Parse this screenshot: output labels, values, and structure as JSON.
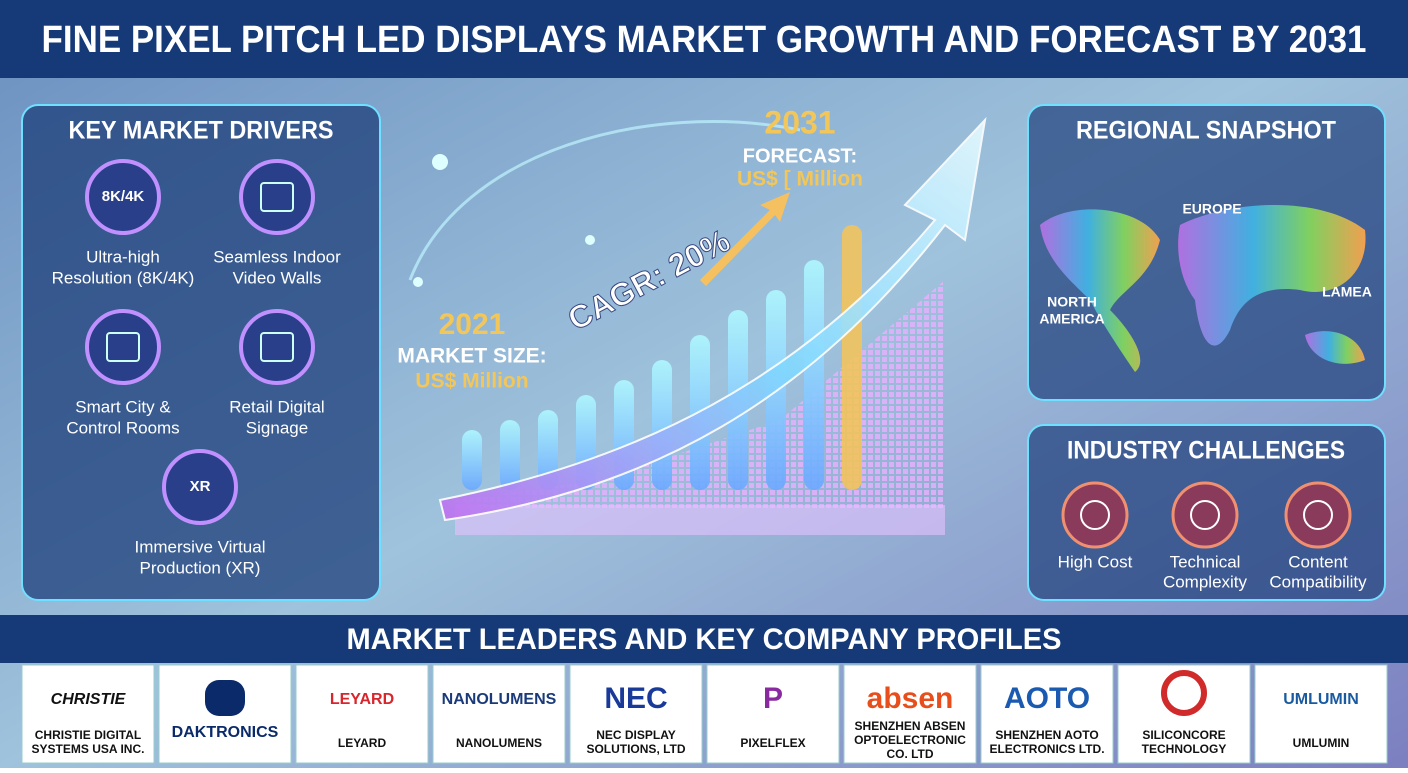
{
  "title": "FINE PIXEL PITCH LED DISPLAYS MARKET GROWTH AND FORECAST BY 2031",
  "drivers": {
    "title": "KEY MARKET DRIVERS",
    "items": [
      {
        "icon_label": "8K/4K",
        "lines": [
          "Ultra-high",
          "Resolution (8K/4K)"
        ]
      },
      {
        "lines": [
          "Seamless Indoor",
          "Video Walls"
        ]
      },
      {
        "lines": [
          "Smart City &",
          "Control Rooms"
        ]
      },
      {
        "lines": [
          "Retail Digital",
          "Signage"
        ]
      },
      {
        "icon_label": "XR",
        "lines": [
          "Immersive Virtual",
          "Production (XR)"
        ]
      }
    ]
  },
  "growth": {
    "start_year": "2021",
    "start_label": "MARKET SIZE:",
    "start_value": "US$ Million",
    "cagr": "CAGR: 20%",
    "end_year": "2031",
    "end_label": "FORECAST:",
    "end_value": "US$ [ Million"
  },
  "regional": {
    "title": "REGIONAL SNAPSHOT",
    "regions": [
      [
        "EUROPE"
      ],
      [
        "NORTH",
        "AMERICA"
      ],
      [
        "LAMEA"
      ]
    ]
  },
  "challenges": {
    "title": "INDUSTRY CHALLENGES",
    "items": [
      {
        "lines": [
          "High Cost"
        ]
      },
      {
        "lines": [
          "Technical",
          "Complexity"
        ]
      },
      {
        "lines": [
          "Content",
          "Compatibility"
        ]
      }
    ]
  },
  "leaders": {
    "title": "MARKET LEADERS AND KEY COMPANY PROFILES",
    "companies": [
      {
        "logo": "CHRISTIE",
        "lines": [
          "CHRISTIE DIGITAL",
          "SYSTEMS USA INC."
        ]
      },
      {
        "logo": "DAKTRONICS",
        "lines": []
      },
      {
        "logo": "LEYARD",
        "lines": [
          "LEYARD"
        ]
      },
      {
        "logo": "NANOLUMENS",
        "lines": [
          "NANOLUMENS"
        ]
      },
      {
        "logo": "NEC",
        "lines": [
          "NEC DISPLAY",
          "SOLUTIONS, LTD"
        ]
      },
      {
        "logo": "P",
        "lines": [
          "PIXELFLEX"
        ]
      },
      {
        "logo": "absen",
        "lines": [
          "SHENZHEN ABSEN",
          "OPTOELECTRONIC",
          "CO. LTD"
        ]
      },
      {
        "logo": "AOTO",
        "lines": [
          "SHENZHEN AOTO",
          "ELECTRONICS LTD."
        ]
      },
      {
        "lines": [
          "SILICONCORE",
          "TECHNOLOGY"
        ]
      },
      {
        "logo": "UMLUMIN",
        "lines": [
          "UMLUMIN"
        ]
      }
    ]
  }
}
